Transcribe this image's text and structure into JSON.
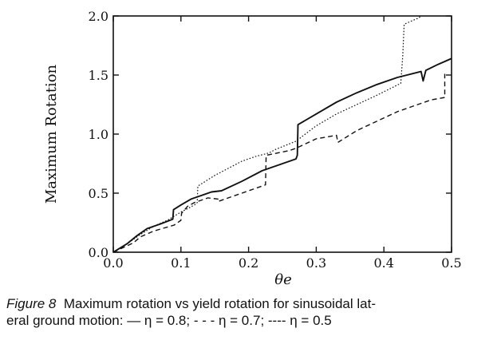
{
  "chart_data": {
    "type": "line",
    "xlabel": "θe",
    "ylabel": "Maximum Rotation",
    "xlim": [
      0,
      0.5
    ],
    "ylim": [
      0,
      2.0
    ],
    "xticks": [
      "0.0",
      "0.1",
      "0.2",
      "0.3",
      "0.4",
      "0.5"
    ],
    "yticks": [
      "0.0",
      "0.5",
      "1.0",
      "1.5",
      "2.0"
    ],
    "grid": false,
    "series": [
      {
        "name": "η = 0.8",
        "style": "solid",
        "points": [
          [
            0,
            0
          ],
          [
            0.02,
            0.07
          ],
          [
            0.035,
            0.14
          ],
          [
            0.05,
            0.2
          ],
          [
            0.07,
            0.24
          ],
          [
            0.088,
            0.28
          ],
          [
            0.089,
            0.36
          ],
          [
            0.1,
            0.4
          ],
          [
            0.115,
            0.45
          ],
          [
            0.13,
            0.48
          ],
          [
            0.145,
            0.51
          ],
          [
            0.16,
            0.52
          ],
          [
            0.19,
            0.6
          ],
          [
            0.22,
            0.69
          ],
          [
            0.24,
            0.73
          ],
          [
            0.27,
            0.79
          ],
          [
            0.272,
            0.82
          ],
          [
            0.273,
            1.08
          ],
          [
            0.3,
            1.17
          ],
          [
            0.33,
            1.27
          ],
          [
            0.36,
            1.35
          ],
          [
            0.39,
            1.42
          ],
          [
            0.42,
            1.48
          ],
          [
            0.455,
            1.53
          ],
          [
            0.458,
            1.45
          ],
          [
            0.462,
            1.54
          ],
          [
            0.48,
            1.59
          ],
          [
            0.5,
            1.64
          ]
        ]
      },
      {
        "name": "η = 0.7",
        "style": "dashed",
        "points": [
          [
            0,
            0
          ],
          [
            0.03,
            0.08
          ],
          [
            0.04,
            0.13
          ],
          [
            0.06,
            0.18
          ],
          [
            0.09,
            0.23
          ],
          [
            0.1,
            0.27
          ],
          [
            0.101,
            0.33
          ],
          [
            0.11,
            0.39
          ],
          [
            0.12,
            0.42
          ],
          [
            0.14,
            0.46
          ],
          [
            0.155,
            0.45
          ],
          [
            0.155,
            0.43
          ],
          [
            0.19,
            0.5
          ],
          [
            0.225,
            0.57
          ],
          [
            0.226,
            0.82
          ],
          [
            0.26,
            0.86
          ],
          [
            0.27,
            0.88
          ],
          [
            0.3,
            0.96
          ],
          [
            0.33,
            0.99
          ],
          [
            0.332,
            0.93
          ],
          [
            0.36,
            1.03
          ],
          [
            0.39,
            1.11
          ],
          [
            0.42,
            1.19
          ],
          [
            0.45,
            1.25
          ],
          [
            0.47,
            1.29
          ],
          [
            0.49,
            1.31
          ],
          [
            0.49,
            1.51
          ]
        ]
      },
      {
        "name": "η = 0.5",
        "style": "dotted",
        "points": [
          [
            0,
            0
          ],
          [
            0.025,
            0.09
          ],
          [
            0.04,
            0.15
          ],
          [
            0.06,
            0.22
          ],
          [
            0.08,
            0.27
          ],
          [
            0.1,
            0.34
          ],
          [
            0.12,
            0.4
          ],
          [
            0.124,
            0.42
          ],
          [
            0.125,
            0.56
          ],
          [
            0.15,
            0.65
          ],
          [
            0.17,
            0.71
          ],
          [
            0.19,
            0.77
          ],
          [
            0.21,
            0.81
          ],
          [
            0.23,
            0.84
          ],
          [
            0.24,
            0.87
          ],
          [
            0.27,
            0.94
          ],
          [
            0.3,
            1.07
          ],
          [
            0.33,
            1.17
          ],
          [
            0.36,
            1.25
          ],
          [
            0.39,
            1.33
          ],
          [
            0.425,
            1.43
          ],
          [
            0.428,
            1.67
          ],
          [
            0.43,
            1.93
          ],
          [
            0.45,
            1.98
          ],
          [
            0.47,
            2.05
          ]
        ]
      }
    ]
  },
  "caption": {
    "figure_label": "Figure 8",
    "line1": "Maximum rotation vs yield rotation for sinusoidal lat-",
    "line2": "eral ground motion: — η = 0.8; - - - η = 0.7; ---- η = 0.5"
  }
}
